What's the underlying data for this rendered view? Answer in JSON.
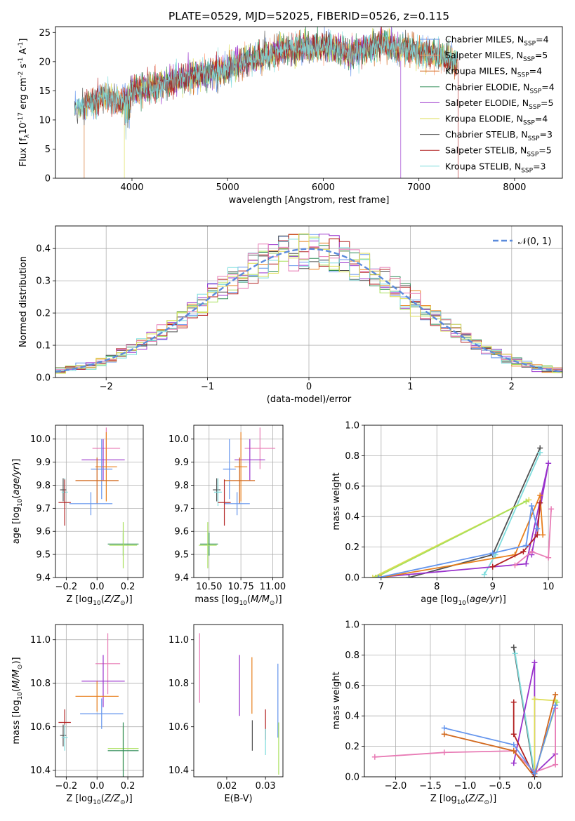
{
  "colors": {
    "chabrier_miles": "#6495ED",
    "salpeter_miles": "#FFA07A",
    "kroupa_miles": "#D2691E",
    "chabrier_elodie": "#2E8B57",
    "salpeter_elodie": "#9932CC",
    "kroupa_elodie": "#DDDD55",
    "chabrier_stelib": "#505050",
    "salpeter_stelib": "#B22222",
    "kroupa_stelib": "#7FDDDD",
    "extra_pink": "#E87BB5",
    "extra_orange": "#E8801E",
    "extra_lime": "#A8E05A",
    "gaussian": "#5B8BDC"
  },
  "chart_data": [
    {
      "id": "spectrum",
      "type": "line",
      "title": "PLATE=0529, MJD=52025, FIBERID=0526, z=0.115",
      "xlabel": "wavelength [Angstrom, rest frame]",
      "ylabel": "Flux [f$_\\lambda$10$^{-17}$ erg cm$^{-2}$ s$^{-1}$ A$^{-1}$]",
      "xlim": [
        3200,
        8500
      ],
      "ylim": [
        0,
        26
      ],
      "xticks": [
        4000,
        5000,
        6000,
        7000,
        8000
      ],
      "yticks": [
        0,
        5,
        10,
        15,
        20,
        25
      ],
      "legend_position": "upper right",
      "continuum": [
        [
          3400,
          11.5
        ],
        [
          3500,
          12.5
        ],
        [
          3700,
          14
        ],
        [
          3900,
          13
        ],
        [
          4000,
          15
        ],
        [
          4200,
          15.5
        ],
        [
          4500,
          17
        ],
        [
          4800,
          18
        ],
        [
          5000,
          19
        ],
        [
          5300,
          20.5
        ],
        [
          5600,
          22
        ],
        [
          6000,
          22.5
        ],
        [
          6300,
          21.5
        ],
        [
          6600,
          23
        ],
        [
          6900,
          22
        ],
        [
          7200,
          21
        ],
        [
          7400,
          20
        ]
      ],
      "series": [
        {
          "name": "Chabrier MILES, N$_{SSP}$=4",
          "color": "#6495ED"
        },
        {
          "name": "Salpeter MILES, N$_{SSP}$=5",
          "color": "#FFA07A"
        },
        {
          "name": "Kroupa MILES, N$_{SSP}$=4",
          "color": "#D2691E"
        },
        {
          "name": "Chabrier ELODIE, N$_{SSP}$=4",
          "color": "#2E8B57"
        },
        {
          "name": "Salpeter ELODIE, N$_{SSP}$=5",
          "color": "#9932CC"
        },
        {
          "name": "Kroupa ELODIE, N$_{SSP}$=4",
          "color": "#DDDD55"
        },
        {
          "name": "Chabrier STELIB, N$_{SSP}$=3",
          "color": "#505050"
        },
        {
          "name": "Salpeter STELIB, N$_{SSP}$=5",
          "color": "#B22222"
        },
        {
          "name": "Kroupa STELIB, N$_{SSP}$=3",
          "color": "#7FDDDD"
        }
      ]
    },
    {
      "id": "residuals",
      "type": "line",
      "xlabel": "(data-model)/error",
      "ylabel": "Normed distribution",
      "xlim": [
        -2.5,
        2.5
      ],
      "ylim": [
        0,
        0.47
      ],
      "xticks": [
        -2,
        -1,
        0,
        1,
        2
      ],
      "xticklabels": [
        "−2",
        "−1",
        "0",
        "1",
        "2"
      ],
      "yticks": [
        0.0,
        0.1,
        0.2,
        0.3,
        0.4
      ],
      "grid": true,
      "legend": [
        {
          "name": "$\\mathcal{N}(0,1)$",
          "style": "dashed"
        }
      ],
      "legend_position": "upper right",
      "bins": 50
    },
    {
      "id": "age_vs_Z",
      "type": "scatter",
      "xlabel": "Z [log$_{10}$($Z/Z_\\odot$)]",
      "ylabel": "age  [log$_{10}$($age/yr$)]",
      "xlim": [
        -0.27,
        0.3
      ],
      "ylim": [
        9.4,
        10.06
      ],
      "xticks": [
        -0.2,
        0.0,
        0.2
      ],
      "xticklabels": [
        "−0.2",
        "0.0",
        "0.2"
      ],
      "yticks": [
        9.4,
        9.5,
        9.6,
        9.7,
        9.8,
        9.9,
        10.0
      ],
      "grid": true,
      "points": [
        {
          "x": 0.06,
          "y": 9.96,
          "xerr": 0.09,
          "yerr": 0.09,
          "color": "#E87BB5"
        },
        {
          "x": 0.04,
          "y": 9.91,
          "xerr": 0.14,
          "yerr": 0.09,
          "color": "#9932CC"
        },
        {
          "x": 0.06,
          "y": 9.88,
          "xerr": 0.07,
          "yerr": 0.15,
          "color": "#E8801E"
        },
        {
          "x": 0.03,
          "y": 9.87,
          "xerr": 0.07,
          "yerr": 0.13,
          "color": "#6495ED"
        },
        {
          "x": 0.0,
          "y": 9.82,
          "xerr": 0.14,
          "yerr": 0.1,
          "color": "#D2691E"
        },
        {
          "x": -0.04,
          "y": 9.72,
          "xerr": 0.14,
          "yerr": 0.05,
          "color": "#6495ED"
        },
        {
          "x": -0.22,
          "y": 9.78,
          "xerr": 0.02,
          "yerr": 0.05,
          "color": "#505050"
        },
        {
          "x": -0.21,
          "y": 9.77,
          "xerr": 0.02,
          "yerr": 0.06,
          "color": "#7FDDDD"
        },
        {
          "x": -0.21,
          "y": 9.725,
          "xerr": 0.04,
          "yerr": 0.1,
          "color": "#B22222"
        },
        {
          "x": 0.17,
          "y": 9.545,
          "xerr": 0.1,
          "yerr": 0.05,
          "color": "#2E8B57"
        },
        {
          "x": 0.17,
          "y": 9.54,
          "xerr": 0.09,
          "yerr": 0.1,
          "color": "#A8E05A"
        }
      ]
    },
    {
      "id": "age_vs_mass",
      "type": "scatter",
      "xlabel": "mass [log$_{10}$($M/M_\\odot$)]",
      "xlim": [
        10.38,
        11.08
      ],
      "ylim": [
        9.4,
        10.06
      ],
      "xticks": [
        10.5,
        10.75,
        11.0
      ],
      "xticklabels": [
        "10.50",
        "10.75",
        "11.00"
      ],
      "yticks": [
        9.4,
        9.5,
        9.6,
        9.7,
        9.8,
        9.9,
        10.0
      ],
      "grid": true,
      "points": [
        {
          "x": 10.9,
          "y": 9.96,
          "xerr": 0.12,
          "yerr": 0.09,
          "color": "#E87BB5"
        },
        {
          "x": 10.82,
          "y": 9.91,
          "xerr": 0.12,
          "yerr": 0.09,
          "color": "#9932CC"
        },
        {
          "x": 10.75,
          "y": 9.88,
          "xerr": 0.05,
          "yerr": 0.15,
          "color": "#E8801E"
        },
        {
          "x": 10.66,
          "y": 9.87,
          "xerr": 0.05,
          "yerr": 0.13,
          "color": "#6495ED"
        },
        {
          "x": 10.74,
          "y": 9.82,
          "xerr": 0.12,
          "yerr": 0.1,
          "color": "#D2691E"
        },
        {
          "x": 10.72,
          "y": 9.72,
          "xerr": 0.1,
          "yerr": 0.05,
          "color": "#6495ED"
        },
        {
          "x": 10.56,
          "y": 9.78,
          "xerr": 0.03,
          "yerr": 0.05,
          "color": "#505050"
        },
        {
          "x": 10.57,
          "y": 9.77,
          "xerr": 0.03,
          "yerr": 0.06,
          "color": "#7FDDDD"
        },
        {
          "x": 10.62,
          "y": 9.725,
          "xerr": 0.05,
          "yerr": 0.1,
          "color": "#B22222"
        },
        {
          "x": 10.5,
          "y": 9.545,
          "xerr": 0.07,
          "yerr": 0.05,
          "color": "#2E8B57"
        },
        {
          "x": 10.49,
          "y": 9.54,
          "xerr": 0.07,
          "yerr": 0.1,
          "color": "#A8E05A"
        }
      ]
    },
    {
      "id": "weight_vs_age",
      "type": "line",
      "xlabel": "age  [log$_{10}$($age/yr$)]",
      "ylabel": "mass weight",
      "xlim": [
        6.7,
        10.25
      ],
      "ylim": [
        0,
        1.0
      ],
      "xticks": [
        7,
        8,
        9,
        10
      ],
      "yticks": [
        0.0,
        0.2,
        0.4,
        0.6,
        0.8,
        1.0
      ],
      "grid": true,
      "series": [
        {
          "color": "#505050",
          "x": [
            7.5,
            9.0,
            9.85
          ],
          "y": [
            0.0,
            0.15,
            0.85
          ]
        },
        {
          "color": "#7FDDDD",
          "x": [
            8.85,
            9.05,
            9.85
          ],
          "y": [
            0.02,
            0.15,
            0.82
          ]
        },
        {
          "color": "#9932CC",
          "x": [
            6.9,
            9.6,
            10.0,
            9.7
          ],
          "y": [
            0.0,
            0.09,
            0.75,
            0.15
          ]
        },
        {
          "color": "#DDDD55",
          "x": [
            6.85,
            9.65
          ],
          "y": [
            0.0,
            0.51
          ]
        },
        {
          "color": "#A8E05A",
          "x": [
            6.9,
            9.6
          ],
          "y": [
            0.0,
            0.5
          ]
        },
        {
          "color": "#E87BB5",
          "x": [
            9.4,
            9.7,
            10.0,
            10.05
          ],
          "y": [
            0.08,
            0.17,
            0.13,
            0.45
          ]
        },
        {
          "color": "#E8801E",
          "x": [
            7.0,
            9.4,
            9.85,
            9.9
          ],
          "y": [
            0.0,
            0.15,
            0.54,
            0.28
          ]
        },
        {
          "color": "#B22222",
          "x": [
            9.0,
            9.55,
            9.8,
            9.85
          ],
          "y": [
            0.07,
            0.17,
            0.28,
            0.49
          ]
        },
        {
          "color": "#6495ED",
          "x": [
            6.95,
            9.0,
            9.6,
            9.7,
            9.8
          ],
          "y": [
            0.0,
            0.16,
            0.21,
            0.47,
            0.32
          ]
        }
      ]
    },
    {
      "id": "mass_vs_Z",
      "type": "scatter",
      "xlabel": "Z [log$_{10}$($Z/Z_\\odot$)]",
      "ylabel": "mass [log$_{10}$($M/M_\\odot$)]",
      "xlim": [
        -0.27,
        0.3
      ],
      "ylim": [
        10.37,
        11.07
      ],
      "xticks": [
        -0.2,
        0.0,
        0.2
      ],
      "xticklabels": [
        "−0.2",
        "0.0",
        "0.2"
      ],
      "yticks": [
        10.4,
        10.6,
        10.8,
        11.0
      ],
      "grid": true,
      "points": [
        {
          "x": 0.07,
          "y": 10.89,
          "xerr": 0.08,
          "yerr": 0.14,
          "color": "#E87BB5"
        },
        {
          "x": 0.04,
          "y": 10.81,
          "xerr": 0.14,
          "yerr": 0.12,
          "color": "#9932CC"
        },
        {
          "x": 0.0,
          "y": 10.74,
          "xerr": 0.14,
          "yerr": 0.07,
          "color": "#E8801E"
        },
        {
          "x": 0.03,
          "y": 10.66,
          "xerr": 0.14,
          "yerr": 0.07,
          "color": "#6495ED"
        },
        {
          "x": -0.21,
          "y": 10.62,
          "xerr": 0.04,
          "yerr": 0.06,
          "color": "#B22222"
        },
        {
          "x": -0.22,
          "y": 10.56,
          "xerr": 0.02,
          "yerr": 0.05,
          "color": "#505050"
        },
        {
          "x": -0.21,
          "y": 10.55,
          "xerr": 0.02,
          "yerr": 0.06,
          "color": "#7FDDDD"
        },
        {
          "x": 0.17,
          "y": 10.5,
          "xerr": 0.1,
          "yerr": 0.1,
          "color": "#A8E05A"
        },
        {
          "x": 0.17,
          "y": 10.49,
          "xerr": 0.1,
          "yerr": 0.13,
          "color": "#2E8B57"
        }
      ]
    },
    {
      "id": "mass_vs_ebv",
      "type": "scatter",
      "xlabel": "E(B-V)",
      "xlim": [
        0.0115,
        0.0345
      ],
      "ylim": [
        10.37,
        11.07
      ],
      "xticks": [
        0.02,
        0.03
      ],
      "xticklabels": [
        "0.02",
        "0.03"
      ],
      "yticks": [
        10.4,
        10.6,
        10.8,
        11.0
      ],
      "grid": false,
      "points": [
        {
          "x": 0.013,
          "y": 10.87,
          "yerr": 0.16,
          "color": "#E87BB5"
        },
        {
          "x": 0.0233,
          "y": 10.79,
          "yerr": 0.14,
          "color": "#9932CC"
        },
        {
          "x": 0.0265,
          "y": 10.79,
          "yerr": 0.13,
          "color": "#E8801E"
        },
        {
          "x": 0.0266,
          "y": 10.56,
          "yerr": 0.07,
          "color": "#505050"
        },
        {
          "x": 0.03,
          "y": 10.61,
          "yerr": 0.07,
          "color": "#B22222"
        },
        {
          "x": 0.03,
          "y": 10.53,
          "yerr": 0.06,
          "color": "#7FDDDD"
        },
        {
          "x": 0.0332,
          "y": 10.72,
          "yerr": 0.17,
          "color": "#6495ED"
        },
        {
          "x": 0.0334,
          "y": 10.5,
          "yerr": 0.12,
          "color": "#A8E05A"
        }
      ]
    },
    {
      "id": "weight_vs_Z",
      "type": "line",
      "xlabel": "Z [log$_{10}$($Z/Z_\\odot$)]",
      "ylabel": "mass weight",
      "xlim": [
        -2.45,
        0.4
      ],
      "ylim": [
        0,
        1.0
      ],
      "xticks": [
        -2.0,
        -1.5,
        -1.0,
        -0.5,
        0.0
      ],
      "xticklabels": [
        "−2.0",
        "−1.5",
        "−1.0",
        "−0.5",
        "0.0"
      ],
      "yticks": [
        0.0,
        0.2,
        0.4,
        0.6,
        0.8,
        1.0
      ],
      "grid": true,
      "series": [
        {
          "color": "#505050",
          "x": [
            -0.3,
            0.0
          ],
          "y": [
            0.85,
            0.0
          ]
        },
        {
          "color": "#7FDDDD",
          "x": [
            -0.28,
            0.0
          ],
          "y": [
            0.81,
            0.02
          ]
        },
        {
          "color": "#9932CC",
          "x": [
            -0.3,
            0.0,
            0.0,
            0.3
          ],
          "y": [
            0.09,
            0.75,
            0.02,
            0.15
          ]
        },
        {
          "color": "#DDDD55",
          "x": [
            0.0,
            0.0,
            0.3
          ],
          "y": [
            0.0,
            0.51,
            0.5
          ]
        },
        {
          "color": "#A8E05A",
          "x": [
            0.0,
            0.32
          ],
          "y": [
            0.02,
            0.49
          ]
        },
        {
          "color": "#E87BB5",
          "x": [
            -2.3,
            -1.3,
            -0.3,
            0.0,
            0.3,
            0.3
          ],
          "y": [
            0.13,
            0.16,
            0.17,
            0.03,
            0.08,
            0.45
          ]
        },
        {
          "color": "#D2691E",
          "x": [
            -1.3,
            -0.3,
            0.0,
            0.3
          ],
          "y": [
            0.28,
            0.17,
            0.0,
            0.54
          ]
        },
        {
          "color": "#B22222",
          "x": [
            -0.3,
            -0.3,
            0.0
          ],
          "y": [
            0.49,
            0.28,
            0.0
          ]
        },
        {
          "color": "#6495ED",
          "x": [
            -1.3,
            -0.3,
            0.0,
            0.3
          ],
          "y": [
            0.32,
            0.21,
            0.02,
            0.47
          ]
        }
      ]
    }
  ]
}
